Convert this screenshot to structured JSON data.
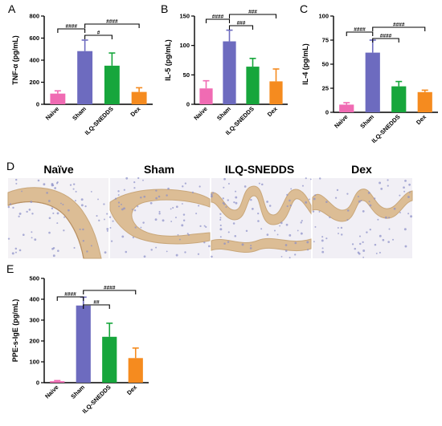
{
  "panels": {
    "A": "A",
    "B": "B",
    "C": "C",
    "D": "D",
    "E": "E"
  },
  "colors": {
    "naive": "#f06bb3",
    "sham": "#6d6bbf",
    "ilq": "#17a63c",
    "dex": "#f58b1f",
    "tissue_bg": "#f3f1f4",
    "tissue_stain": "#d9b890",
    "tissue_nuclei": "#8a8fc8"
  },
  "histology": {
    "titles": [
      "Naïve",
      "Sham",
      "ILQ-SNEDDS",
      "Dex"
    ]
  },
  "chart_data": [
    {
      "id": "A",
      "type": "bar",
      "categories": [
        "Naive",
        "Sham",
        "ILQ-SNEDDS",
        "Dex"
      ],
      "values": [
        97,
        482,
        350,
        112
      ],
      "errors": [
        25,
        100,
        115,
        38
      ],
      "ylabel": "TNF-α (pg/mL)",
      "ylim": [
        0,
        800
      ],
      "yticks": [
        0,
        200,
        400,
        600,
        800
      ],
      "annotations": [
        {
          "from": 0,
          "to": 1,
          "label": "####"
        },
        {
          "from": 1,
          "to": 2,
          "label": "#"
        },
        {
          "from": 1,
          "to": 3,
          "label": "####"
        }
      ]
    },
    {
      "id": "B",
      "type": "bar",
      "categories": [
        "Naive",
        "Sham",
        "ILQ-SNEDDS",
        "Dex"
      ],
      "values": [
        27,
        107,
        64,
        39
      ],
      "errors": [
        13,
        19,
        14,
        21
      ],
      "ylabel": "IL-5 (pg/mL)",
      "ylim": [
        0,
        150
      ],
      "yticks": [
        0,
        50,
        100,
        150
      ],
      "annotations": [
        {
          "from": 0,
          "to": 1,
          "label": "####"
        },
        {
          "from": 1,
          "to": 2,
          "label": "###"
        },
        {
          "from": 1,
          "to": 3,
          "label": "###"
        }
      ]
    },
    {
      "id": "C",
      "type": "bar",
      "categories": [
        "Naive",
        "Sham",
        "ILQ-SNEDDS",
        "Dex"
      ],
      "values": [
        8,
        62,
        27,
        21
      ],
      "errors": [
        2,
        13,
        5,
        2
      ],
      "ylabel": "IL-4 (pg/mL)",
      "ylim": [
        0,
        100
      ],
      "yticks": [
        0,
        25,
        50,
        75,
        100
      ],
      "annotations": [
        {
          "from": 0,
          "to": 1,
          "label": "####"
        },
        {
          "from": 1,
          "to": 2,
          "label": "####"
        },
        {
          "from": 1,
          "to": 3,
          "label": "####"
        }
      ]
    },
    {
      "id": "E",
      "type": "bar",
      "categories": [
        "Naive",
        "Sham",
        "ILQ-SNEDDS",
        "Dex"
      ],
      "values": [
        7,
        370,
        220,
        118
      ],
      "errors": [
        3,
        40,
        65,
        48
      ],
      "ylabel": "PPE-s-IgE (pg/mL)",
      "ylim": [
        0,
        500
      ],
      "yticks": [
        0,
        100,
        200,
        300,
        400,
        500
      ],
      "annotations": [
        {
          "from": 0,
          "to": 1,
          "label": "####"
        },
        {
          "from": 1,
          "to": 2,
          "label": "##"
        },
        {
          "from": 1,
          "to": 3,
          "label": "####"
        }
      ]
    }
  ]
}
